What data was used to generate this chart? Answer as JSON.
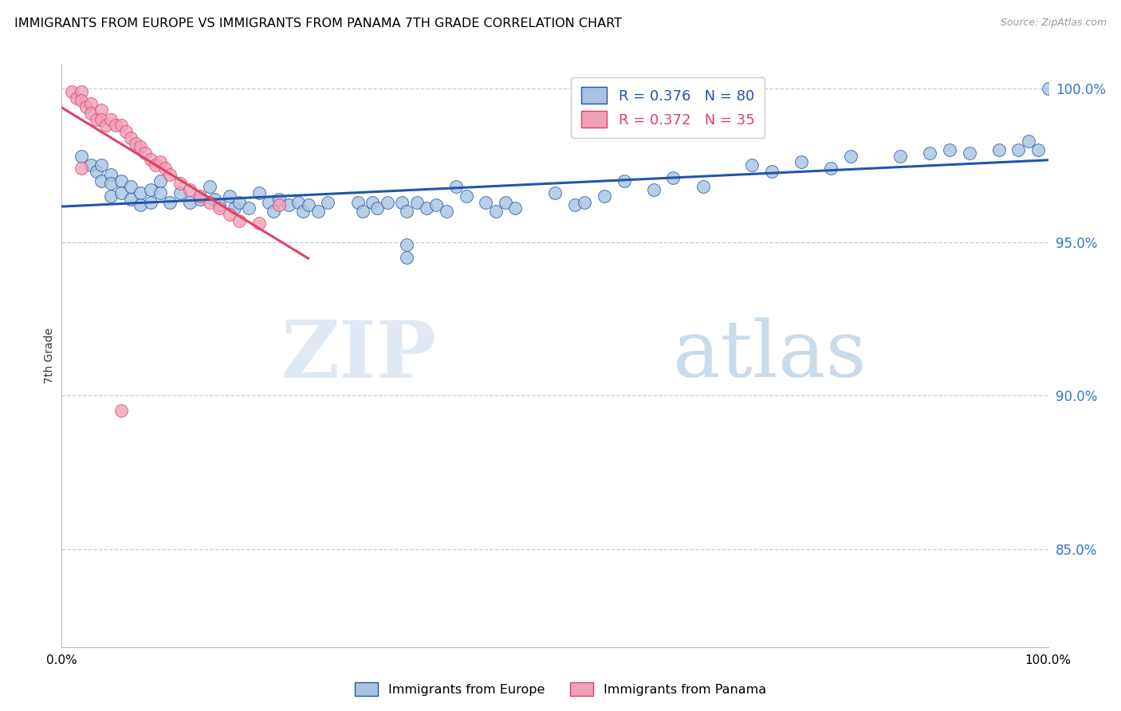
{
  "title": "IMMIGRANTS FROM EUROPE VS IMMIGRANTS FROM PANAMA 7TH GRADE CORRELATION CHART",
  "source": "Source: ZipAtlas.com",
  "ylabel": "7th Grade",
  "legend_blue_label": "Immigrants from Europe",
  "legend_pink_label": "Immigrants from Panama",
  "R_blue": 0.376,
  "N_blue": 80,
  "R_pink": 0.372,
  "N_pink": 35,
  "blue_color": "#a8c4e0",
  "pink_color": "#f0a0b8",
  "blue_line_color": "#2255aa",
  "pink_line_color": "#dd4466",
  "xmin": 0.0,
  "xmax": 1.0,
  "ymin": 0.818,
  "ymax": 1.008,
  "yticks": [
    0.85,
    0.9,
    0.95,
    1.0
  ],
  "ytick_labels": [
    "85.0%",
    "90.0%",
    "95.0%",
    "100.0%"
  ],
  "xticks": [
    0.0,
    0.2,
    0.4,
    0.6,
    0.8,
    1.0
  ],
  "xtick_labels": [
    "0.0%",
    "",
    "",
    "",
    "",
    "100.0%"
  ],
  "watermark_zip": "ZIP",
  "watermark_atlas": "atlas",
  "blue_x": [
    0.02,
    0.03,
    0.035,
    0.04,
    0.04,
    0.05,
    0.05,
    0.05,
    0.06,
    0.06,
    0.07,
    0.07,
    0.08,
    0.08,
    0.09,
    0.09,
    0.1,
    0.1,
    0.11,
    0.12,
    0.13,
    0.14,
    0.15,
    0.155,
    0.16,
    0.17,
    0.175,
    0.18,
    0.19,
    0.2,
    0.21,
    0.215,
    0.22,
    0.23,
    0.24,
    0.245,
    0.25,
    0.26,
    0.27,
    0.3,
    0.305,
    0.315,
    0.32,
    0.33,
    0.345,
    0.35,
    0.36,
    0.37,
    0.38,
    0.39,
    0.4,
    0.41,
    0.43,
    0.44,
    0.45,
    0.46,
    0.5,
    0.52,
    0.53,
    0.55,
    0.57,
    0.6,
    0.62,
    0.65,
    0.7,
    0.72,
    0.75,
    0.78,
    0.8,
    0.85,
    0.88,
    0.9,
    0.92,
    0.95,
    0.97,
    0.98,
    0.99,
    1.0,
    0.35,
    0.35
  ],
  "blue_y": [
    0.978,
    0.975,
    0.973,
    0.975,
    0.97,
    0.972,
    0.969,
    0.965,
    0.97,
    0.966,
    0.968,
    0.964,
    0.966,
    0.962,
    0.967,
    0.963,
    0.97,
    0.966,
    0.963,
    0.966,
    0.963,
    0.964,
    0.968,
    0.964,
    0.962,
    0.965,
    0.961,
    0.963,
    0.961,
    0.966,
    0.963,
    0.96,
    0.964,
    0.962,
    0.963,
    0.96,
    0.962,
    0.96,
    0.963,
    0.963,
    0.96,
    0.963,
    0.961,
    0.963,
    0.963,
    0.96,
    0.963,
    0.961,
    0.962,
    0.96,
    0.968,
    0.965,
    0.963,
    0.96,
    0.963,
    0.961,
    0.966,
    0.962,
    0.963,
    0.965,
    0.97,
    0.967,
    0.971,
    0.968,
    0.975,
    0.973,
    0.976,
    0.974,
    0.978,
    0.978,
    0.979,
    0.98,
    0.979,
    0.98,
    0.98,
    0.983,
    0.98,
    1.0,
    0.949,
    0.945
  ],
  "pink_x": [
    0.01,
    0.015,
    0.02,
    0.02,
    0.025,
    0.03,
    0.03,
    0.035,
    0.04,
    0.04,
    0.045,
    0.05,
    0.055,
    0.06,
    0.065,
    0.07,
    0.075,
    0.08,
    0.085,
    0.09,
    0.095,
    0.1,
    0.105,
    0.11,
    0.12,
    0.13,
    0.14,
    0.15,
    0.16,
    0.17,
    0.18,
    0.2,
    0.22,
    0.06,
    0.02
  ],
  "pink_y": [
    0.999,
    0.997,
    0.999,
    0.996,
    0.994,
    0.995,
    0.992,
    0.99,
    0.993,
    0.99,
    0.988,
    0.99,
    0.988,
    0.988,
    0.986,
    0.984,
    0.982,
    0.981,
    0.979,
    0.977,
    0.975,
    0.976,
    0.974,
    0.972,
    0.969,
    0.967,
    0.965,
    0.963,
    0.961,
    0.959,
    0.957,
    0.956,
    0.962,
    0.895,
    0.974
  ],
  "pink_trend_x": [
    0.0,
    0.25
  ],
  "blue_trend_x": [
    0.0,
    1.0
  ]
}
